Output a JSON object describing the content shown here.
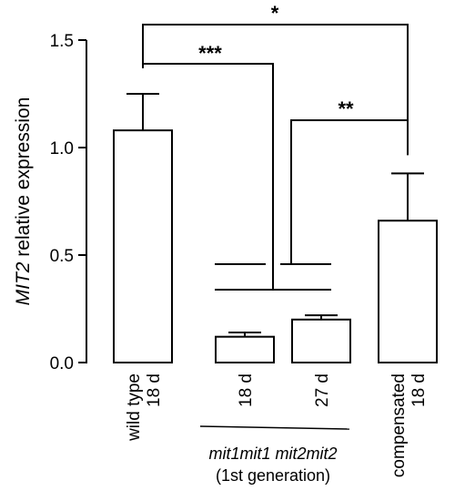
{
  "chart_data": {
    "type": "bar",
    "ylabel_italic": "MIT2",
    "ylabel_rest": " relative expression",
    "ylim": [
      0,
      1.5
    ],
    "yticks": [
      "0.0",
      "0.5",
      "1.0",
      "1.5"
    ],
    "categories": [
      {
        "lines": [
          "wild type",
          "18 d"
        ]
      },
      {
        "lines": [
          "18 d"
        ]
      },
      {
        "lines": [
          "27 d"
        ]
      },
      {
        "lines": [
          "compensated",
          "18 d"
        ]
      }
    ],
    "values": [
      1.08,
      0.12,
      0.2,
      0.66
    ],
    "errors": [
      0.17,
      0.02,
      0.02,
      0.22
    ],
    "group_label": {
      "italic": "mit1mit1 mit2mit2",
      "sub": "(1st generation)"
    },
    "significance": [
      {
        "label": "*"
      },
      {
        "label": "***"
      },
      {
        "label": "**"
      }
    ],
    "grid": false
  }
}
